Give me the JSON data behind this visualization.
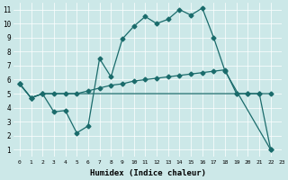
{
  "xlabel": "Humidex (Indice chaleur)",
  "xlim": [
    -0.5,
    23
  ],
  "ylim": [
    0.5,
    11.5
  ],
  "xticks": [
    0,
    1,
    2,
    3,
    4,
    5,
    6,
    7,
    8,
    9,
    10,
    11,
    12,
    13,
    14,
    15,
    16,
    17,
    18,
    19,
    20,
    21,
    22,
    23
  ],
  "yticks": [
    1,
    2,
    3,
    4,
    5,
    6,
    7,
    8,
    9,
    10,
    11
  ],
  "bg_color": "#cce8e8",
  "line_color": "#1a6b6b",
  "line1_x": [
    0,
    1,
    2,
    3,
    4,
    5,
    6,
    7,
    8,
    9,
    10,
    11,
    12,
    13,
    14,
    15,
    16,
    17,
    18,
    22
  ],
  "line1_y": [
    5.7,
    4.7,
    5.0,
    3.7,
    3.8,
    2.2,
    2.7,
    7.5,
    6.2,
    8.9,
    9.8,
    10.5,
    10.0,
    10.3,
    11.0,
    10.6,
    11.1,
    9.0,
    6.6,
    1.0
  ],
  "line2_x": [
    0,
    1,
    2,
    3,
    4,
    5,
    6,
    7,
    8,
    9,
    10,
    11,
    12,
    13,
    14,
    15,
    16,
    17,
    18,
    19,
    20,
    21,
    22
  ],
  "line2_y": [
    5.7,
    4.7,
    5.0,
    5.0,
    5.0,
    5.0,
    5.2,
    5.4,
    5.6,
    5.7,
    5.9,
    6.0,
    6.1,
    6.2,
    6.3,
    6.4,
    6.5,
    6.6,
    6.7,
    5.0,
    5.0,
    5.0,
    1.0
  ],
  "line3_x": [
    0,
    1,
    2,
    19,
    20,
    21,
    22
  ],
  "line3_y": [
    5.7,
    4.7,
    5.0,
    5.0,
    5.0,
    5.0,
    5.0
  ]
}
